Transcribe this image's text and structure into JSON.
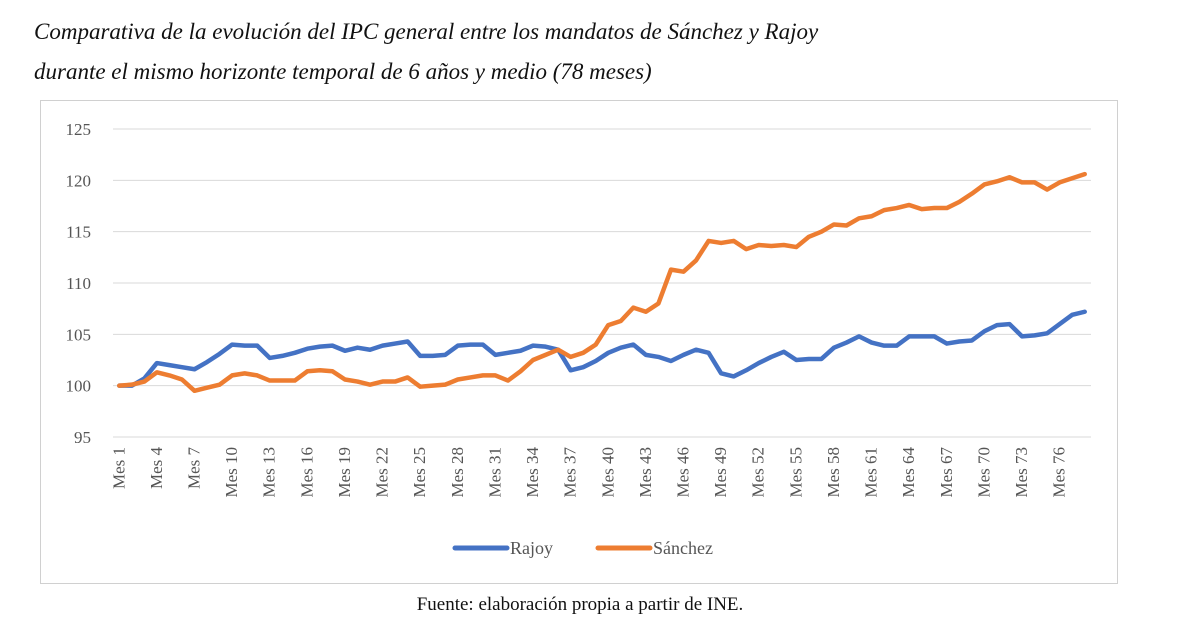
{
  "header": {
    "title_line1": "Comparativa de la evolución del IPC general entre los mandatos de Sánchez y Rajoy",
    "title_line2": "durante el mismo horizonte temporal de 6 años y medio (78 meses)"
  },
  "footer": {
    "source": "Fuente: elaboración propia a partir de INE."
  },
  "chart_data": {
    "type": "line",
    "title": "",
    "xlabel": "",
    "ylabel": "",
    "ylim": [
      95,
      125
    ],
    "yticks": [
      95,
      100,
      105,
      110,
      115,
      120,
      125
    ],
    "grid": true,
    "legend_position": "bottom",
    "x_tick_labels": [
      "Mes 1",
      "Mes 4",
      "Mes 7",
      "Mes 10",
      "Mes 13",
      "Mes 16",
      "Mes 19",
      "Mes 22",
      "Mes 25",
      "Mes 28",
      "Mes 31",
      "Mes 34",
      "Mes 37",
      "Mes 40",
      "Mes 43",
      "Mes 46",
      "Mes 49",
      "Mes 52",
      "Mes 55",
      "Mes 58",
      "Mes 61",
      "Mes 64",
      "Mes 67",
      "Mes 70",
      "Mes 73",
      "Mes 76"
    ],
    "x_tick_months": [
      1,
      4,
      7,
      10,
      13,
      16,
      19,
      22,
      25,
      28,
      31,
      34,
      37,
      40,
      43,
      46,
      49,
      52,
      55,
      58,
      61,
      64,
      67,
      70,
      73,
      76
    ],
    "x_count": 78,
    "series": [
      {
        "name": "Rajoy",
        "color": "#4472C4",
        "values": [
          100.0,
          100.0,
          100.7,
          102.2,
          102.0,
          101.8,
          101.6,
          102.3,
          103.1,
          104.0,
          103.9,
          103.9,
          102.7,
          102.9,
          103.2,
          103.6,
          103.8,
          103.9,
          103.4,
          103.7,
          103.5,
          103.9,
          104.1,
          104.3,
          102.9,
          102.9,
          103.0,
          103.9,
          104.0,
          104.0,
          103.0,
          103.2,
          103.4,
          103.9,
          103.8,
          103.5,
          101.5,
          101.8,
          102.4,
          103.2,
          103.7,
          104.0,
          103.0,
          102.8,
          102.4,
          103.0,
          103.5,
          103.2,
          101.2,
          100.9,
          101.5,
          102.2,
          102.8,
          103.3,
          102.5,
          102.6,
          102.6,
          103.7,
          104.2,
          104.8,
          104.2,
          103.9,
          103.9,
          104.8,
          104.8,
          104.8,
          104.1,
          104.3,
          104.4,
          105.3,
          105.9,
          106.0,
          104.8,
          104.9,
          105.1,
          106.0,
          106.9,
          107.2
        ]
      },
      {
        "name": "Sánchez",
        "color": "#ED7D31",
        "values": [
          100.0,
          100.1,
          100.4,
          101.3,
          101.0,
          100.6,
          99.5,
          99.8,
          100.1,
          101.0,
          101.2,
          101.0,
          100.5,
          100.5,
          100.5,
          101.4,
          101.5,
          101.4,
          100.6,
          100.4,
          100.1,
          100.4,
          100.4,
          100.8,
          99.9,
          100.0,
          100.1,
          100.6,
          100.8,
          101.0,
          101.0,
          100.5,
          101.4,
          102.5,
          103.0,
          103.5,
          102.8,
          103.2,
          104.0,
          105.9,
          106.3,
          107.6,
          107.2,
          108.0,
          111.3,
          111.1,
          112.2,
          114.1,
          113.9,
          114.1,
          113.3,
          113.7,
          113.6,
          113.7,
          113.5,
          114.5,
          115.0,
          115.7,
          115.6,
          116.3,
          116.5,
          117.1,
          117.3,
          117.6,
          117.2,
          117.3,
          117.3,
          117.9,
          118.7,
          119.6,
          119.9,
          120.3,
          119.8,
          119.8,
          119.1,
          119.8,
          120.2,
          120.6
        ]
      }
    ]
  }
}
